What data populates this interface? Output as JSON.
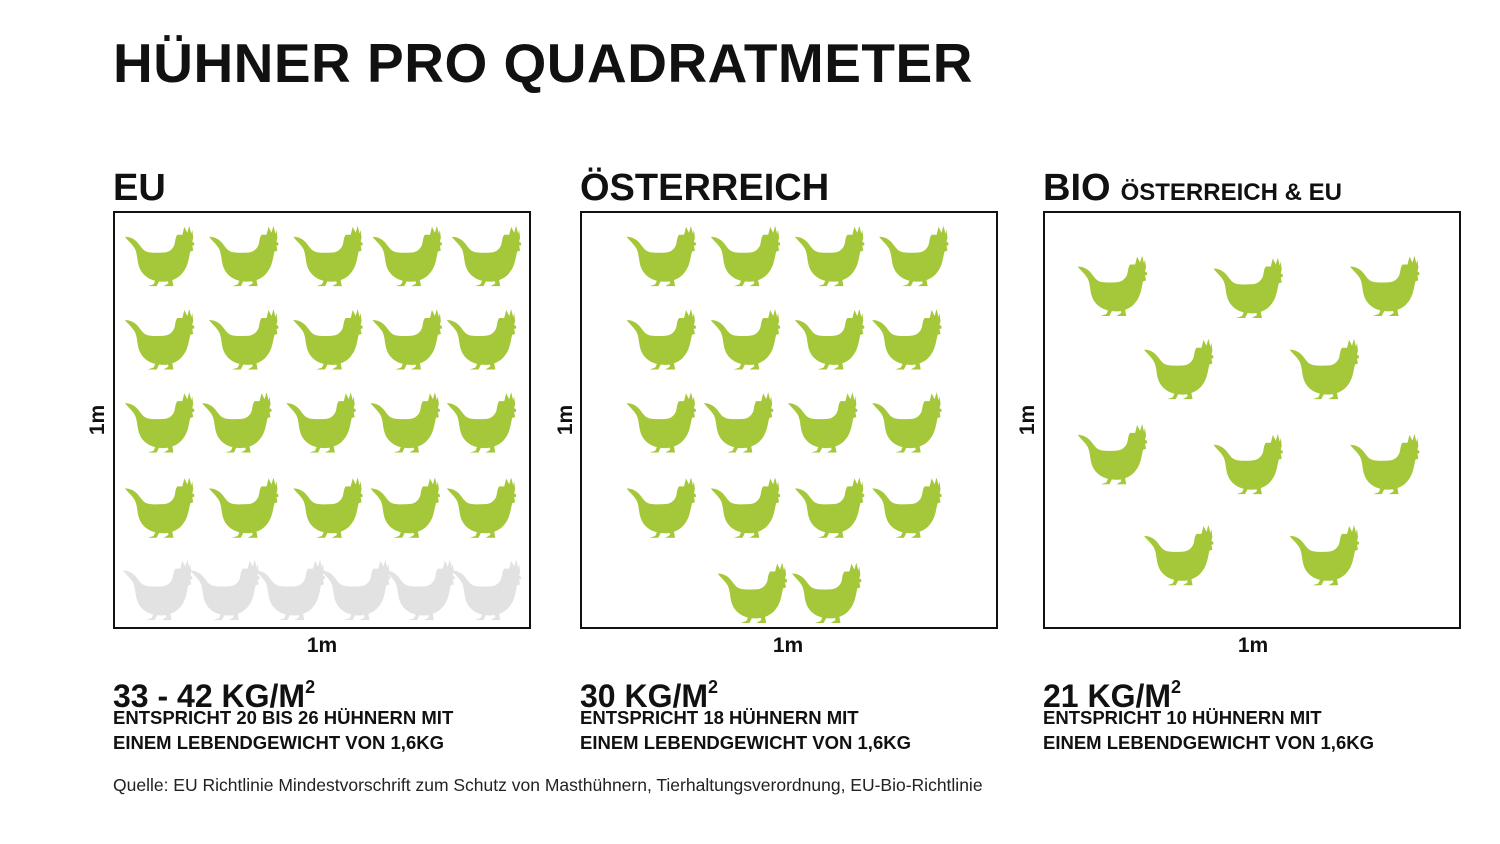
{
  "title": "HÜHNER PRO QUADRATMETER",
  "colors": {
    "chicken_green": "#a5c83a",
    "chicken_grey": "#e2e2e2",
    "outline": "#111111"
  },
  "icon": "chicken-icon",
  "panels": [
    {
      "heading": "EU",
      "subheading": "",
      "side_label": "1m",
      "bottom_label": "1m",
      "density": "33 - 42 KG/M",
      "density_exp": "2",
      "line1": "ENTSPRICHT 20 BIS 26 HÜHNERN MIT",
      "line2": "EINEM LEBENDGEWICHT VON 1,6KG",
      "chickens_green": 20,
      "chickens_grey": 6
    },
    {
      "heading": "ÖSTERREICH",
      "subheading": "",
      "side_label": "1m",
      "bottom_label": "1m",
      "density": "30 KG/M",
      "density_exp": "2",
      "line1": "ENTSPRICHT 18 HÜHNERN MIT",
      "line2": "EINEM LEBENDGEWICHT VON 1,6KG",
      "chickens_green": 18,
      "chickens_grey": 0
    },
    {
      "heading": "BIO",
      "subheading": "ÖSTERREICH & EU",
      "side_label": "1m",
      "bottom_label": "1m",
      "density": "21 KG/M",
      "density_exp": "2",
      "line1": "ENTSPRICHT 10 HÜHNERN MIT",
      "line2": "EINEM LEBENDGEWICHT VON 1,6KG",
      "chickens_green": 10,
      "chickens_grey": 0
    }
  ],
  "source": "Quelle: EU Richtlinie Mindestvorschrift zum Schutz von Masthühnern, Tierhaltungsverordnung, EU-Bio-Richtlinie"
}
